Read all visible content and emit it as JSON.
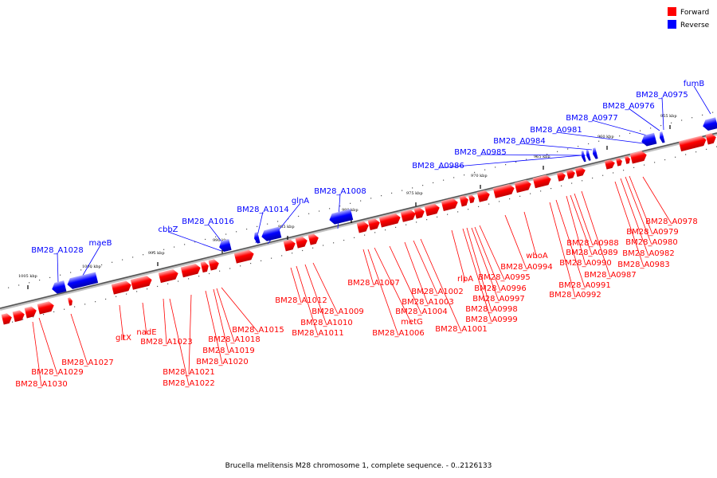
{
  "legend": {
    "forward_label": "Forward",
    "reverse_label": "Reverse",
    "forward_color": "#ff0000",
    "reverse_color": "#0000ff"
  },
  "caption": "Brucella melitensis M28 chromosome 1, complete sequence. - 0..2126133",
  "ticks": [
    "1005 kbp",
    "1000 kbp",
    "995 kbp",
    "990 kbp",
    "985 kbp",
    "980 kbp",
    "975 kbp",
    "970 kbp",
    "965 kbp",
    "960 kbp",
    "955 kbp"
  ],
  "reverse_genes": [
    "BM28_A1028",
    "maeB",
    "cbbZ",
    "BM28_A1016",
    "BM28_A1014",
    "glnA",
    "BM28_A1008",
    "BM28_A0986",
    "BM28_A0985",
    "BM28_A0984",
    "BM28_A0981",
    "BM28_A0977",
    "BM28_A0976",
    "BM28_A0975",
    "fumB"
  ],
  "forward_genes": [
    "BM28_A1030",
    "BM28_A1029",
    "BM28_A1027",
    "gltX",
    "nadE",
    "BM28_A1023",
    "BM28_A1022",
    "BM28_A1021",
    "BM28_A1020",
    "BM28_A1019",
    "BM28_A1018",
    "BM28_A1015",
    "BM28_A1012",
    "BM28_A1011",
    "BM28_A1010",
    "BM28_A1009",
    "BM28_A1007",
    "BM28_A1006",
    "metG",
    "BM28_A1004",
    "BM28_A1003",
    "BM28_A1002",
    "BM28_A1001",
    "rlpA",
    "BM28_A0999",
    "BM28_A0998",
    "BM28_A0997",
    "BM28_A0996",
    "BM28_A0995",
    "wboA",
    "BM28_A0994",
    "BM28_A0992",
    "BM28_A0991",
    "BM28_A0990",
    "BM28_A0989",
    "BM28_A0988",
    "BM28_A0987",
    "BM28_A0983",
    "BM28_A0982",
    "BM28_A0980",
    "BM28_A0979",
    "BM28_A0978"
  ]
}
